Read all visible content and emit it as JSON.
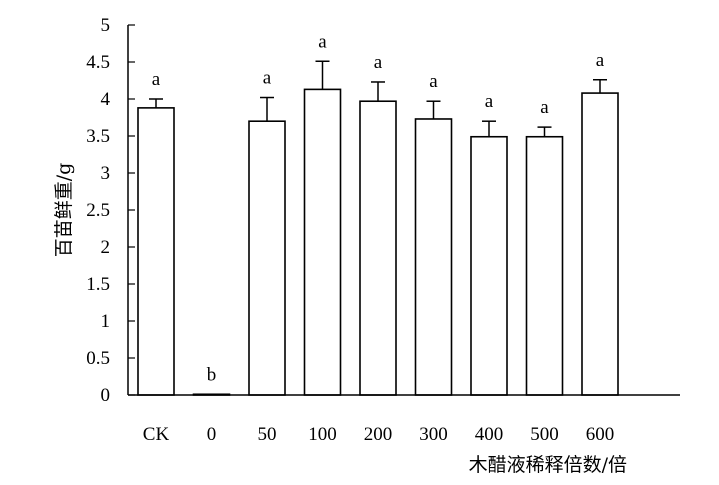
{
  "chart_data": {
    "type": "bar",
    "categories": [
      "CK",
      "0",
      "50",
      "100",
      "200",
      "300",
      "400",
      "500",
      "600"
    ],
    "values": [
      3.88,
      0.01,
      3.7,
      4.13,
      3.97,
      3.73,
      3.49,
      3.49,
      4.08
    ],
    "errors": [
      0.12,
      0.0,
      0.32,
      0.38,
      0.26,
      0.24,
      0.21,
      0.13,
      0.18
    ],
    "significance": [
      "a",
      "b",
      "a",
      "a",
      "a",
      "a",
      "a",
      "a",
      "a"
    ],
    "xlabel": "木醋液稀释倍数/倍",
    "ylabel": "百苗鲜重/g",
    "ylim": [
      0,
      5
    ],
    "yticks": [
      0,
      0.5,
      1,
      1.5,
      2,
      2.5,
      3,
      3.5,
      4,
      4.5,
      5
    ],
    "ytick_labels": [
      "0",
      "0.5",
      "1",
      "1.5",
      "2",
      "2.5",
      "3",
      "3.5",
      "4",
      "4.5",
      "5"
    ],
    "grid": false,
    "legend": "none",
    "colors": {
      "bar_fill": "#ffffff",
      "bar_stroke": "#000000"
    }
  }
}
